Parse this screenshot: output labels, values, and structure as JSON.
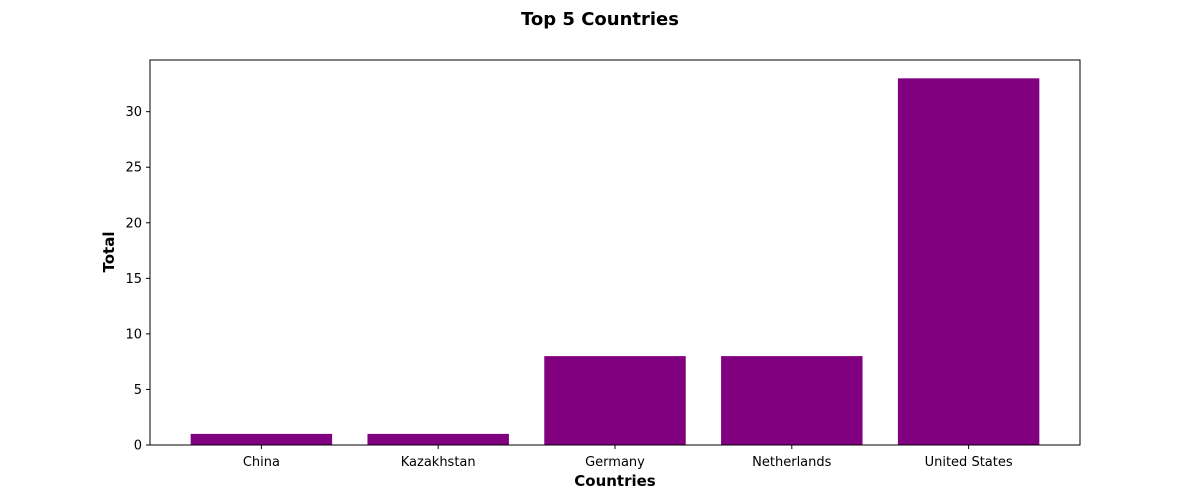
{
  "chart_data": {
    "type": "bar",
    "title": "Top 5 Countries",
    "xlabel": "Countries",
    "ylabel": "Total",
    "categories": [
      "China",
      "Kazakhstan",
      "Germany",
      "Netherlands",
      "United States"
    ],
    "values": [
      1,
      1,
      8,
      8,
      33
    ],
    "ylim": [
      0,
      34.65
    ],
    "yticks": [
      0,
      5,
      10,
      15,
      20,
      25,
      30
    ],
    "bar_color": "#800080",
    "grid": false,
    "legend": "none"
  }
}
